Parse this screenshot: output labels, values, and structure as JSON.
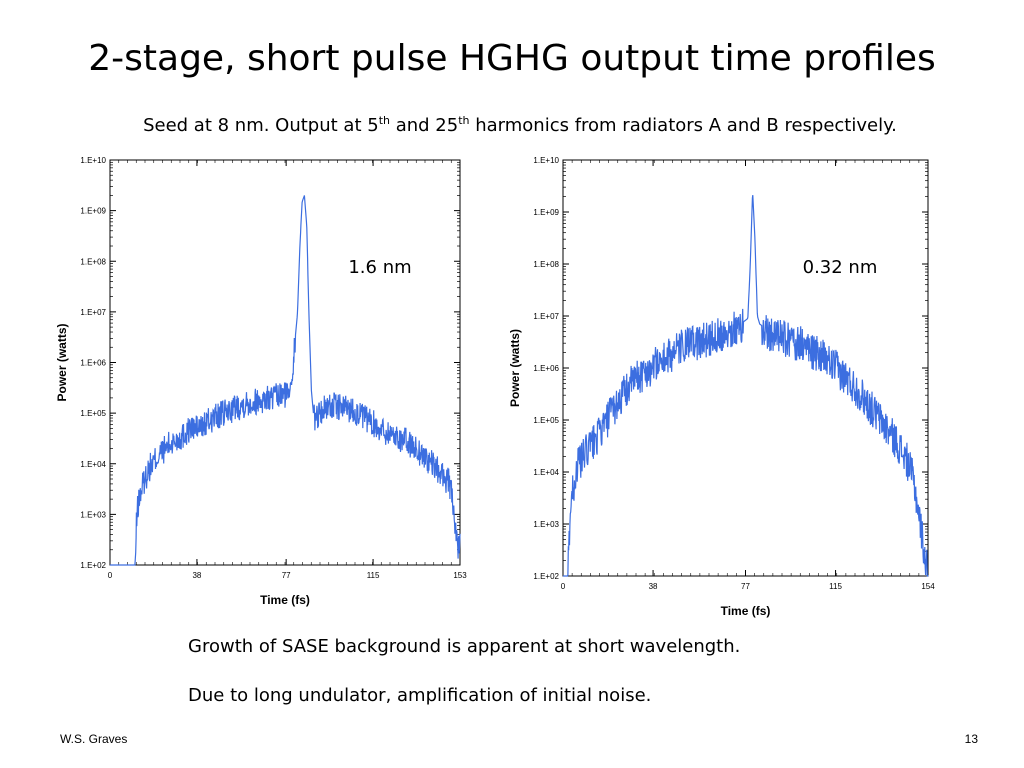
{
  "slide": {
    "title": "2-stage, short pulse HGHG output time profiles",
    "subtitle_pre": "Seed at 8 nm.  Output at 5",
    "subtitle_sup1": "th",
    "subtitle_mid": " and 25",
    "subtitle_sup2": "th",
    "subtitle_post": " harmonics from radiators A and B respectively.",
    "note1": "Growth of SASE background is apparent at short wavelength.",
    "note2": "Due to long undulator, amplification of initial noise.",
    "author": "W.S. Graves",
    "page_number": "13",
    "accent_color": "#3c6ee0"
  },
  "chart_data": [
    {
      "type": "line",
      "annotation": "1.6 nm",
      "xlabel": "Time (fs)",
      "ylabel": "Power (watts)",
      "xlim": [
        0,
        153
      ],
      "ylim": [
        100,
        10000000000
      ],
      "yscale": "log",
      "xticks": [
        "0",
        "38",
        "77",
        "115",
        "153"
      ],
      "xtick_values": [
        0,
        38,
        77,
        115,
        153
      ],
      "yticks": [
        "1.E+02",
        "1.E+03",
        "1.E+04",
        "1.E+05",
        "1.E+06",
        "1.E+07",
        "1.E+08",
        "1.E+09",
        "1.E+10"
      ],
      "series": [
        {
          "color": "#3c6ee0",
          "x": [
            0,
            11,
            11.5,
            12,
            14,
            17,
            20,
            25,
            30,
            35,
            40,
            45,
            50,
            55,
            60,
            65,
            70,
            75,
            78,
            80,
            82,
            83,
            84,
            85,
            86,
            87,
            88,
            89,
            92,
            95,
            100,
            105,
            110,
            115,
            120,
            125,
            130,
            135,
            140,
            145,
            148,
            150,
            151,
            152,
            153
          ],
          "y": [
            100,
            100,
            600,
            1500,
            4000,
            9000,
            14000,
            25000,
            35000,
            55000,
            60000,
            90000,
            110000,
            150000,
            180000,
            200000,
            220000,
            250000,
            280000,
            1000000,
            10000000,
            200000000,
            1500000000,
            2000000000,
            500000000,
            8000000,
            300000,
            90000,
            120000,
            160000,
            150000,
            140000,
            100000,
            70000,
            50000,
            40000,
            30000,
            20000,
            12000,
            7000,
            5000,
            2000,
            500,
            200,
            300
          ]
        }
      ]
    },
    {
      "type": "line",
      "annotation": "0.32 nm",
      "xlabel": "Time (fs)",
      "ylabel": "Power (watts)",
      "xlim": [
        0,
        154
      ],
      "ylim": [
        100,
        10000000000
      ],
      "yscale": "log",
      "xticks": [
        "0",
        "38",
        "77",
        "115",
        "154"
      ],
      "xtick_values": [
        0,
        38,
        77,
        115,
        154
      ],
      "yticks": [
        "1.E+02",
        "1.E+03",
        "1.E+04",
        "1.E+05",
        "1.E+06",
        "1.E+07",
        "1.E+08",
        "1.E+09",
        "1.E+10"
      ],
      "series": [
        {
          "color": "#3c6ee0",
          "x": [
            0,
            2,
            2.5,
            3,
            4,
            6,
            10,
            15,
            20,
            25,
            30,
            35,
            40,
            45,
            50,
            55,
            60,
            65,
            70,
            75,
            78,
            79,
            80,
            81,
            82,
            83,
            85,
            90,
            95,
            100,
            105,
            110,
            115,
            120,
            125,
            130,
            135,
            140,
            145,
            148,
            150,
            152,
            153,
            154
          ],
          "y": [
            100,
            100,
            500,
            2000,
            5000,
            15000,
            30000,
            60000,
            150000,
            350000,
            700000,
            1000000,
            1500000,
            2000000,
            3000000,
            3500000,
            4000000,
            5000000,
            6000000,
            7000000,
            9000000,
            100000000,
            2500000000,
            300000000,
            10000000,
            7000000,
            6000000,
            5000000,
            4000000,
            3500000,
            2500000,
            1800000,
            1200000,
            700000,
            400000,
            200000,
            100000,
            50000,
            20000,
            8000,
            2000,
            500,
            200,
            150
          ]
        }
      ]
    }
  ]
}
